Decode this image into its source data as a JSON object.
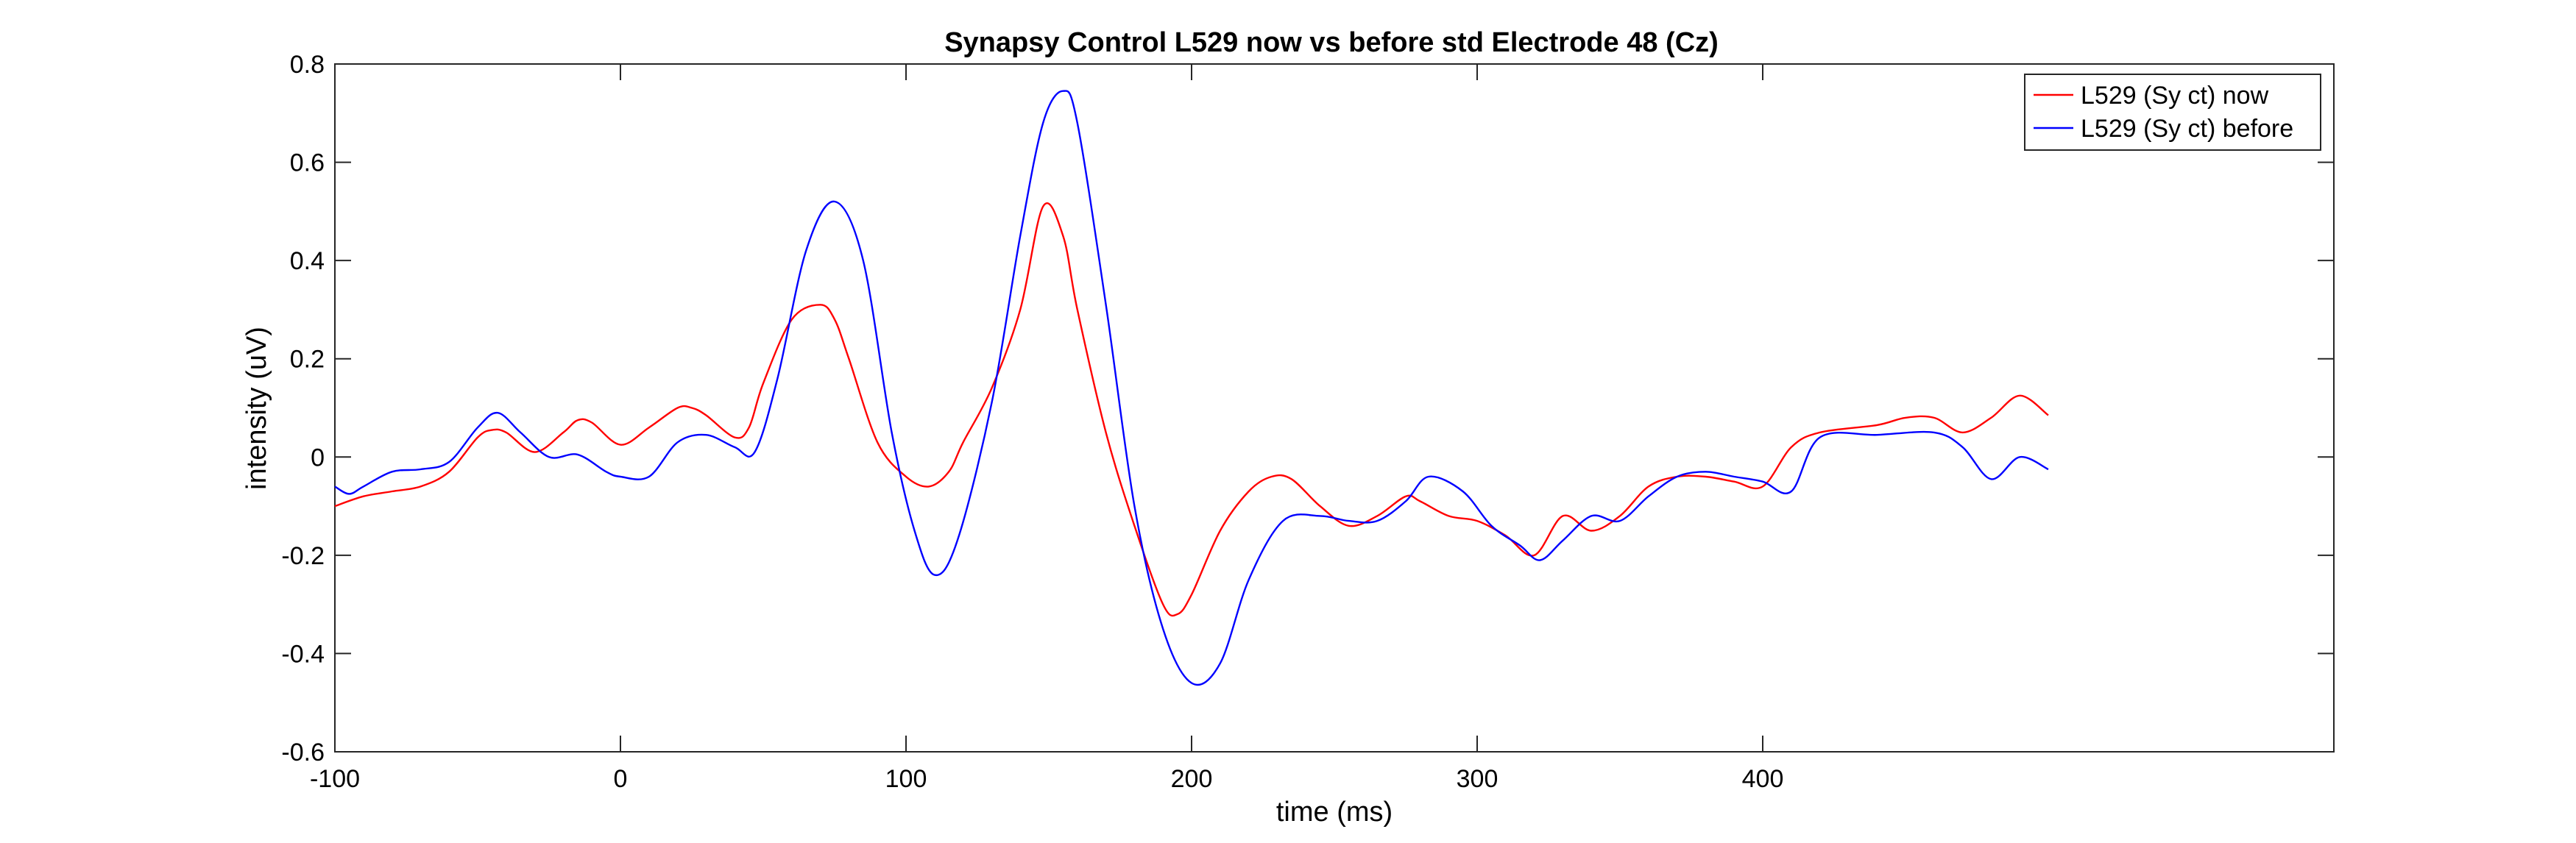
{
  "chart_data": {
    "type": "line",
    "title": "Synapsy Control L529 now vs before std Electrode 48 (Cz)",
    "xlabel": "time (ms)",
    "ylabel": "intensity (uV)",
    "xlim": [
      -100,
      600
    ],
    "ylim": [
      -0.6,
      0.8
    ],
    "xticks": [
      -100,
      0,
      100,
      200,
      300,
      400
    ],
    "yticks": [
      -0.6,
      -0.4,
      -0.2,
      0,
      0.2,
      0.4,
      0.6,
      0.8
    ],
    "grid": false,
    "legend": "top-right",
    "series": [
      {
        "name": "L529 (Sy ct) now",
        "color": "#ff0000",
        "x": [
          -100,
          -90,
          -80,
          -70,
          -60,
          -50,
          -45,
          -40,
          -30,
          -20,
          -15,
          -10,
          0,
          10,
          20,
          25,
          30,
          40,
          45,
          50,
          60,
          70,
          75,
          80,
          90,
          100,
          108,
          115,
          120,
          130,
          140,
          148,
          155,
          160,
          170,
          180,
          190,
          195,
          200,
          210,
          220,
          228,
          235,
          245,
          255,
          265,
          275,
          280,
          290,
          300,
          310,
          320,
          330,
          340,
          350,
          360,
          370,
          380,
          390,
          400,
          410,
          420,
          440,
          450,
          460,
          470,
          480,
          490,
          500
        ],
        "y": [
          -0.1,
          -0.08,
          -0.07,
          -0.06,
          -0.03,
          0.04,
          0.055,
          0.05,
          0.01,
          0.05,
          0.075,
          0.07,
          0.025,
          0.06,
          0.1,
          0.1,
          0.085,
          0.04,
          0.06,
          0.15,
          0.28,
          0.31,
          0.28,
          0.2,
          0.03,
          -0.04,
          -0.06,
          -0.03,
          0.03,
          0.14,
          0.3,
          0.51,
          0.45,
          0.3,
          0.05,
          -0.14,
          -0.3,
          -0.32,
          -0.28,
          -0.15,
          -0.07,
          -0.04,
          -0.045,
          -0.1,
          -0.14,
          -0.12,
          -0.08,
          -0.09,
          -0.12,
          -0.13,
          -0.16,
          -0.2,
          -0.12,
          -0.15,
          -0.12,
          -0.06,
          -0.04,
          -0.04,
          -0.05,
          -0.06,
          0.02,
          0.05,
          0.065,
          0.08,
          0.08,
          0.05,
          0.08,
          0.125,
          0.085
        ]
      },
      {
        "name": "L529 (Sy ct) before",
        "color": "#0000ff",
        "x": [
          -100,
          -95,
          -90,
          -80,
          -70,
          -60,
          -50,
          -43,
          -35,
          -25,
          -15,
          -5,
          0,
          10,
          20,
          30,
          40,
          47,
          55,
          65,
          75,
          85,
          95,
          103,
          110,
          118,
          130,
          140,
          148,
          155,
          160,
          170,
          180,
          190,
          200,
          210,
          220,
          232,
          245,
          255,
          265,
          275,
          283,
          295,
          305,
          315,
          322,
          330,
          340,
          350,
          360,
          370,
          380,
          390,
          400,
          410,
          420,
          440,
          460,
          470,
          480,
          490,
          500
        ],
        "y": [
          -0.06,
          -0.075,
          -0.06,
          -0.03,
          -0.025,
          -0.01,
          0.06,
          0.09,
          0.05,
          0.0,
          0.005,
          -0.03,
          -0.04,
          -0.04,
          0.03,
          0.045,
          0.02,
          0.01,
          0.16,
          0.42,
          0.52,
          0.4,
          0.05,
          -0.15,
          -0.24,
          -0.17,
          0.11,
          0.45,
          0.68,
          0.745,
          0.68,
          0.31,
          -0.1,
          -0.35,
          -0.46,
          -0.42,
          -0.25,
          -0.13,
          -0.12,
          -0.13,
          -0.13,
          -0.09,
          -0.04,
          -0.07,
          -0.14,
          -0.18,
          -0.21,
          -0.17,
          -0.12,
          -0.13,
          -0.08,
          -0.04,
          -0.03,
          -0.04,
          -0.05,
          -0.07,
          0.04,
          0.045,
          0.05,
          0.02,
          -0.045,
          0.0,
          -0.025
        ]
      }
    ]
  }
}
